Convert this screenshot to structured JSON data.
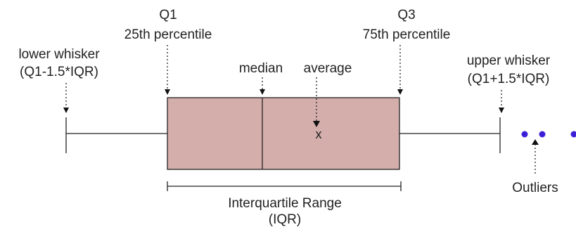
{
  "labels": {
    "q1_name": "Q1",
    "q1_desc": "25th percentile",
    "q3_name": "Q3",
    "q3_desc": "75th percentile",
    "lower_whisker_name": "lower whisker",
    "lower_whisker_formula": "(Q1-1.5*IQR)",
    "upper_whisker_name": "upper whisker",
    "upper_whisker_formula": "(Q1+1.5*IQR)",
    "median": "median",
    "average": "average",
    "average_marker": "x",
    "outliers": "Outliers",
    "iqr_line1": "Interquartile Range",
    "iqr_line2": "(IQR)"
  },
  "colors": {
    "box_fill": "#d4aeaa",
    "line": "#222222",
    "outlier": "#3a1fd6"
  }
}
